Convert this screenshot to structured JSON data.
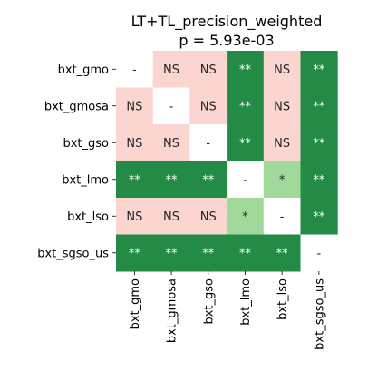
{
  "chart_data": {
    "type": "heatmap",
    "title": "LT+TL_precision_weighted",
    "subtitle": "p = 5.93e-03",
    "row_labels": [
      "bxt_gmo",
      "bxt_gmosa",
      "bxt_gso",
      "bxt_lmo",
      "bxt_lso",
      "bxt_sgso_us"
    ],
    "col_labels": [
      "bxt_gmo",
      "bxt_gmosa",
      "bxt_gso",
      "bxt_lmo",
      "bxt_lso",
      "bxt_sgso_us"
    ],
    "cells": [
      [
        "-",
        "NS",
        "NS",
        "**",
        "NS",
        "**"
      ],
      [
        "NS",
        "-",
        "NS",
        "**",
        "NS",
        "**"
      ],
      [
        "NS",
        "NS",
        "-",
        "**",
        "NS",
        "**"
      ],
      [
        "**",
        "**",
        "**",
        "-",
        "*",
        "**"
      ],
      [
        "NS",
        "NS",
        "NS",
        "*",
        "-",
        "**"
      ],
      [
        "**",
        "**",
        "**",
        "**",
        "**",
        "-"
      ]
    ],
    "colors": {
      "NS": "#fbd5d0",
      "*": "#a1d99b",
      "**": "#238b45",
      "-": "#ffffff"
    },
    "text_colors": {
      "NS": "#262626",
      "*": "#262626",
      "**": "#ffffff",
      "-": "#262626"
    },
    "grid": false,
    "legend": "none"
  }
}
